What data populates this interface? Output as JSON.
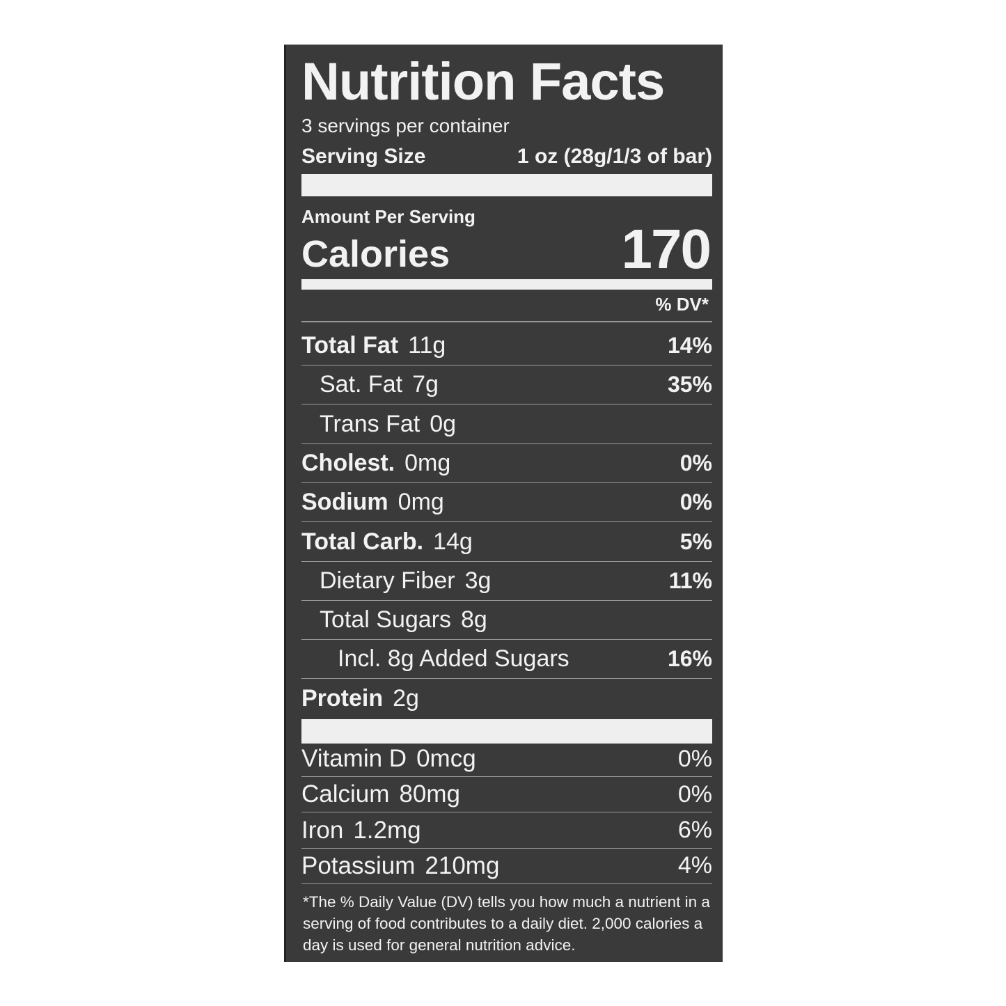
{
  "title": "Nutrition Facts",
  "servings_per_container": "3 servings per container",
  "serving_size": {
    "label": "Serving Size",
    "value": "1 oz (28g/1/3 of bar)"
  },
  "amount_per_serving": "Amount Per Serving",
  "calories": {
    "label": "Calories",
    "value": "170"
  },
  "dv_header": "% DV*",
  "nutrients": [
    {
      "label": "Total Fat",
      "amount": "11g",
      "dv": "14%",
      "bold": true,
      "indent": 0
    },
    {
      "label": "Sat. Fat",
      "amount": "7g",
      "dv": "35%",
      "bold": false,
      "indent": 1
    },
    {
      "label": "Trans Fat",
      "amount": "0g",
      "dv": "",
      "bold": false,
      "indent": 1
    },
    {
      "label": "Cholest.",
      "amount": "0mg",
      "dv": "0%",
      "bold": true,
      "indent": 0
    },
    {
      "label": "Sodium",
      "amount": "0mg",
      "dv": "0%",
      "bold": true,
      "indent": 0
    },
    {
      "label": "Total Carb.",
      "amount": "14g",
      "dv": "5%",
      "bold": true,
      "indent": 0
    },
    {
      "label": "Dietary Fiber",
      "amount": "3g",
      "dv": "11%",
      "bold": false,
      "indent": 1
    },
    {
      "label": "Total Sugars",
      "amount": "8g",
      "dv": "",
      "bold": false,
      "indent": 1
    },
    {
      "label": "Incl. 8g Added Sugars",
      "amount": "",
      "dv": "16%",
      "bold": false,
      "indent": 2
    },
    {
      "label": "Protein",
      "amount": "2g",
      "dv": "",
      "bold": true,
      "indent": 0
    }
  ],
  "vitamins": [
    {
      "label": "Vitamin D",
      "amount": "0mcg",
      "dv": "0%"
    },
    {
      "label": "Calcium",
      "amount": "80mg",
      "dv": "0%"
    },
    {
      "label": "Iron",
      "amount": "1.2mg",
      "dv": "6%"
    },
    {
      "label": "Potassium",
      "amount": "210mg",
      "dv": "4%"
    }
  ],
  "footnote": "*The % Daily Value (DV) tells you how much a nutrient in a serving of food contributes to a daily diet. 2,000 calories a day is used for general nutrition advice.",
  "colors": {
    "panel": "#3b3a3b",
    "text": "#f2f2f2"
  }
}
